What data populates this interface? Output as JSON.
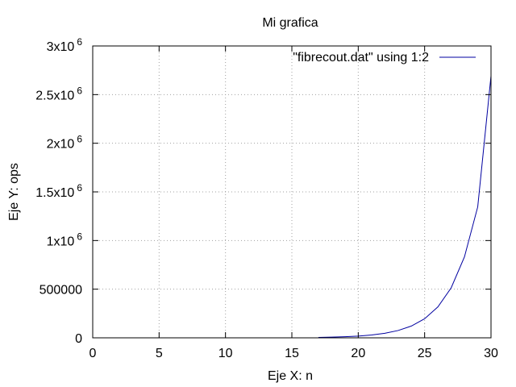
{
  "chart_data": {
    "type": "line",
    "title": "Mi grafica",
    "xlabel": "Eje X: n",
    "ylabel": "Eje Y: ops",
    "xlim": [
      0,
      30
    ],
    "ylim": [
      0,
      3000000
    ],
    "grid": true,
    "legend_position": "top-right",
    "x_ticks": [
      {
        "value": 0,
        "label": "0"
      },
      {
        "value": 5,
        "label": "5"
      },
      {
        "value": 10,
        "label": "10"
      },
      {
        "value": 15,
        "label": "15"
      },
      {
        "value": 20,
        "label": "20"
      },
      {
        "value": 25,
        "label": "25"
      },
      {
        "value": 30,
        "label": "30"
      }
    ],
    "y_ticks": [
      {
        "value": 0,
        "mantissa": "0",
        "exponent": ""
      },
      {
        "value": 500000,
        "mantissa": "500000",
        "exponent": ""
      },
      {
        "value": 1000000,
        "mantissa": "1x10",
        "exponent": "6"
      },
      {
        "value": 1500000,
        "mantissa": "1.5x10",
        "exponent": "6"
      },
      {
        "value": 2000000,
        "mantissa": "2x10",
        "exponent": "6"
      },
      {
        "value": 2500000,
        "mantissa": "2.5x10",
        "exponent": "6"
      },
      {
        "value": 3000000,
        "mantissa": "3x10",
        "exponent": "6"
      }
    ],
    "series": [
      {
        "name": "\"fibrecout.dat\" using 1:2",
        "color": "#0000a0",
        "x": [
          17,
          18,
          19,
          20,
          21,
          22,
          23,
          24,
          25,
          26,
          27,
          28,
          29,
          30
        ],
        "y": [
          4200,
          6800,
          11000,
          17700,
          28700,
          46400,
          75000,
          121000,
          196000,
          318000,
          514000,
          832000,
          1346000,
          2692000
        ]
      }
    ]
  }
}
